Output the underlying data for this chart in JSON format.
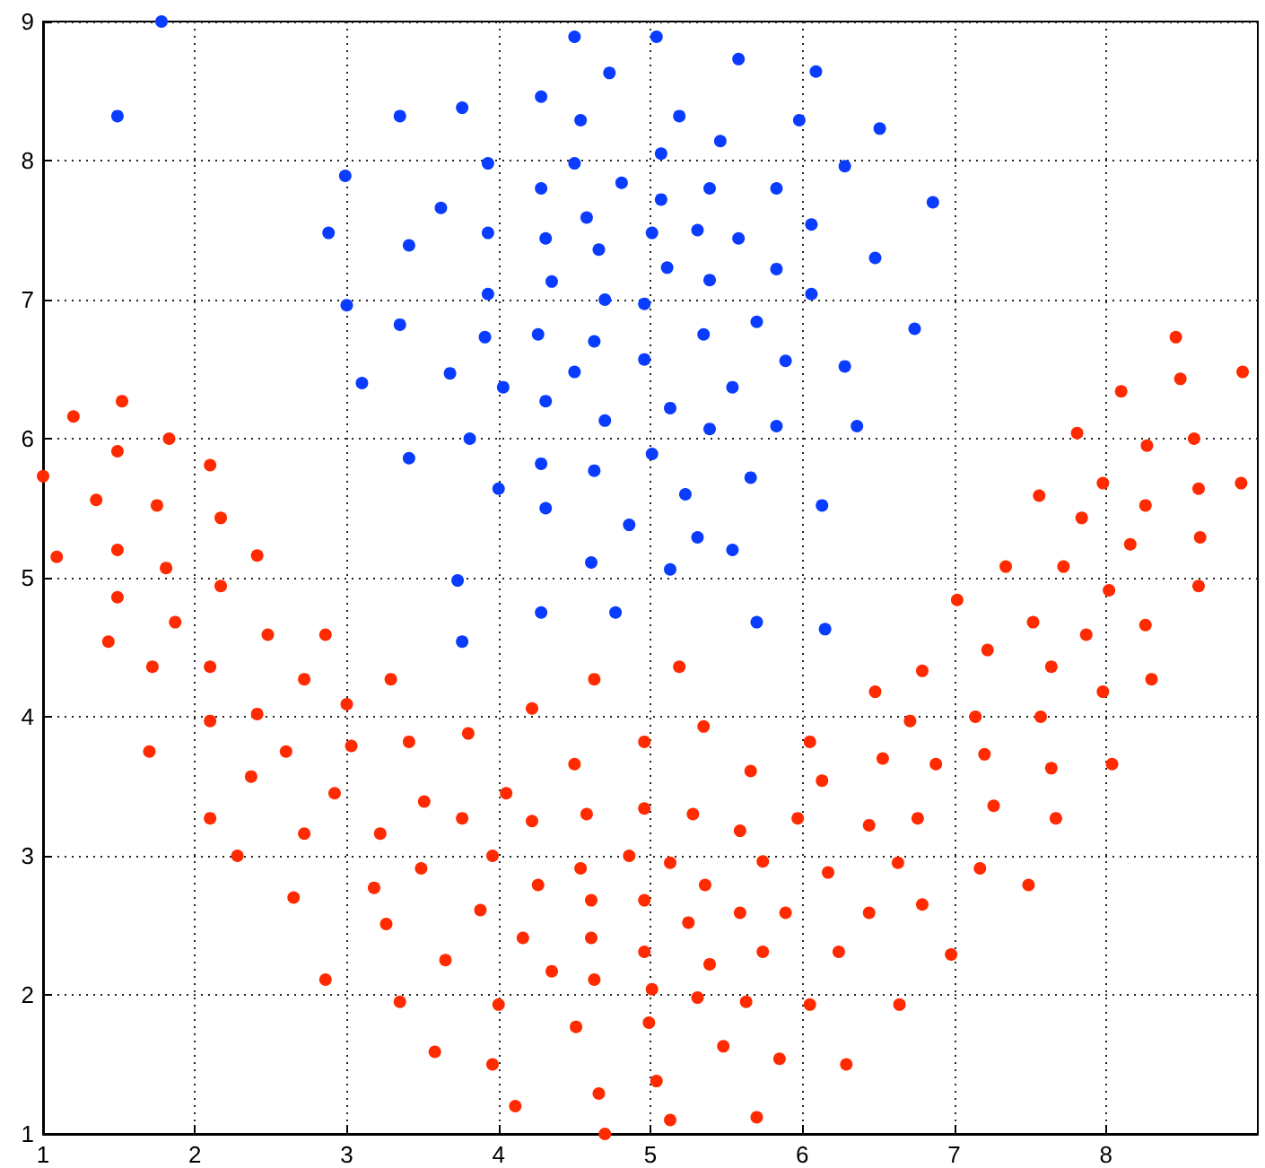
{
  "chart_data": {
    "type": "scatter",
    "xlim": [
      1,
      9
    ],
    "xticks": [
      1,
      2,
      3,
      4,
      5,
      6,
      7,
      8
    ],
    "ylim": [
      1,
      9
    ],
    "yticks": [
      1,
      2,
      3,
      4,
      5,
      6,
      7,
      8,
      9
    ],
    "grid": true,
    "marker": "circle",
    "series": [
      {
        "color": "#0a3cff",
        "x": [
          1.78,
          1.49,
          2.99,
          2.88,
          3.35,
          3.41,
          3.0,
          3.35,
          3.1,
          3.41,
          4.5,
          5.04,
          5.58,
          6.09,
          4.73,
          3.76,
          4.28,
          4.54,
          5.19,
          5.98,
          5.46,
          5.07,
          3.93,
          4.5,
          4.28,
          4.81,
          5.39,
          5.83,
          3.62,
          5.07,
          4.58,
          6.06,
          3.93,
          4.31,
          5.01,
          5.31,
          5.58,
          4.66,
          5.11,
          5.39,
          5.83,
          4.35,
          3.93,
          4.7,
          4.96,
          6.06,
          3.91,
          4.26,
          4.63,
          5.35,
          5.7,
          4.96,
          5.89,
          3.68,
          4.5,
          4.03,
          4.31,
          5.54,
          4.7,
          5.13,
          5.39,
          5.83,
          3.81,
          4.0,
          4.28,
          4.63,
          5.01,
          5.66,
          5.23,
          4.31,
          6.13,
          4.86,
          5.31,
          5.54,
          4.61,
          5.13,
          3.73,
          6.51,
          6.28,
          6.86,
          6.48,
          6.74,
          6.28,
          6.36,
          4.28,
          4.77,
          3.76,
          5.7,
          6.15
        ],
        "values": [
          9.0,
          8.32,
          7.89,
          7.48,
          8.32,
          7.39,
          6.96,
          6.82,
          6.4,
          5.86,
          8.89,
          8.89,
          8.73,
          8.64,
          8.63,
          8.38,
          8.46,
          8.29,
          8.32,
          8.29,
          8.14,
          8.05,
          7.98,
          7.98,
          7.8,
          7.84,
          7.8,
          7.8,
          7.66,
          7.72,
          7.59,
          7.54,
          7.48,
          7.44,
          7.48,
          7.5,
          7.44,
          7.36,
          7.23,
          7.14,
          7.22,
          7.13,
          7.04,
          7.0,
          6.97,
          7.04,
          6.73,
          6.75,
          6.7,
          6.75,
          6.84,
          6.57,
          6.56,
          6.47,
          6.48,
          6.37,
          6.27,
          6.37,
          6.13,
          6.22,
          6.07,
          6.09,
          6.0,
          5.64,
          5.82,
          5.77,
          5.89,
          5.72,
          5.6,
          5.5,
          5.52,
          5.38,
          5.29,
          5.2,
          5.11,
          5.06,
          4.98,
          8.23,
          7.96,
          7.7,
          7.3,
          6.79,
          6.52,
          6.09,
          4.75,
          4.75,
          4.54,
          4.68,
          4.63
        ]
      },
      {
        "color": "#ff2a00",
        "x": [
          1.0,
          1.2,
          1.52,
          1.49,
          1.83,
          1.35,
          1.75,
          2.1,
          2.17,
          1.09,
          1.49,
          1.81,
          2.41,
          2.17,
          1.49,
          1.87,
          1.43,
          2.48,
          2.86,
          1.72,
          2.1,
          2.72,
          3.29,
          3.0,
          2.41,
          2.1,
          1.7,
          2.6,
          3.03,
          3.41,
          2.37,
          2.92,
          3.51,
          2.1,
          2.72,
          3.22,
          2.28,
          3.49,
          2.65,
          3.18,
          3.26,
          2.86,
          3.35,
          4.63,
          5.19,
          4.22,
          3.8,
          4.96,
          5.35,
          6.05,
          4.5,
          5.66,
          6.13,
          4.05,
          3.76,
          4.22,
          4.58,
          4.96,
          5.28,
          5.59,
          5.97,
          3.96,
          4.54,
          4.86,
          5.13,
          5.74,
          6.17,
          4.26,
          5.36,
          4.61,
          4.96,
          3.88,
          5.25,
          5.59,
          5.89,
          4.16,
          4.61,
          4.96,
          5.74,
          3.65,
          4.35,
          4.63,
          5.39,
          5.01,
          5.31,
          5.63,
          4.0,
          6.05,
          4.51,
          4.99,
          5.48,
          5.85,
          3.58,
          3.96,
          5.04,
          4.66,
          4.11,
          5.13,
          5.7,
          4.7,
          8.46,
          8.49,
          8.9,
          8.1,
          7.81,
          8.27,
          8.58,
          7.98,
          7.56,
          8.61,
          8.89,
          8.26,
          7.84,
          8.16,
          8.62,
          7.34,
          7.72,
          8.61,
          8.02,
          7.02,
          7.52,
          8.26,
          7.87,
          7.22,
          7.64,
          6.79,
          8.3,
          6.48,
          7.98,
          7.14,
          7.57,
          6.71,
          6.53,
          6.88,
          7.2,
          7.64,
          8.04,
          7.26,
          7.67,
          6.44,
          6.76,
          6.63,
          7.17,
          7.49,
          6.79,
          6.44,
          6.24,
          6.98,
          6.64,
          6.29
        ],
        "values": [
          5.73,
          6.16,
          6.27,
          5.91,
          6.0,
          5.56,
          5.52,
          5.81,
          5.43,
          5.15,
          5.2,
          5.07,
          5.16,
          4.94,
          4.86,
          4.68,
          4.54,
          4.59,
          4.59,
          4.36,
          4.36,
          4.27,
          4.27,
          4.09,
          4.02,
          3.97,
          3.75,
          3.75,
          3.79,
          3.82,
          3.57,
          3.45,
          3.39,
          3.27,
          3.16,
          3.16,
          3.0,
          2.91,
          2.7,
          2.77,
          2.51,
          2.11,
          1.95,
          4.27,
          4.36,
          4.06,
          3.88,
          3.82,
          3.93,
          3.82,
          3.66,
          3.61,
          3.54,
          3.45,
          3.27,
          3.25,
          3.3,
          3.34,
          3.3,
          3.18,
          3.27,
          3.0,
          2.91,
          3.0,
          2.95,
          2.96,
          2.88,
          2.79,
          2.79,
          2.68,
          2.68,
          2.61,
          2.52,
          2.59,
          2.59,
          2.41,
          2.41,
          2.31,
          2.31,
          2.25,
          2.17,
          2.11,
          2.22,
          2.04,
          1.98,
          1.95,
          1.93,
          1.93,
          1.77,
          1.8,
          1.63,
          1.54,
          1.59,
          1.5,
          1.38,
          1.29,
          1.2,
          1.1,
          1.12,
          1.0,
          6.73,
          6.43,
          6.48,
          6.34,
          6.04,
          5.95,
          6.0,
          5.68,
          5.59,
          5.64,
          5.68,
          5.52,
          5.43,
          5.24,
          5.29,
          5.08,
          5.08,
          4.94,
          4.91,
          4.84,
          4.68,
          4.66,
          4.59,
          4.48,
          4.36,
          4.33,
          4.27,
          4.18,
          4.18,
          4.0,
          4.0,
          3.97,
          3.7,
          3.66,
          3.73,
          3.63,
          3.66,
          3.36,
          3.27,
          3.22,
          3.27,
          2.95,
          2.91,
          2.79,
          2.65,
          2.59,
          2.31,
          2.29,
          1.93,
          1.5
        ]
      }
    ]
  }
}
